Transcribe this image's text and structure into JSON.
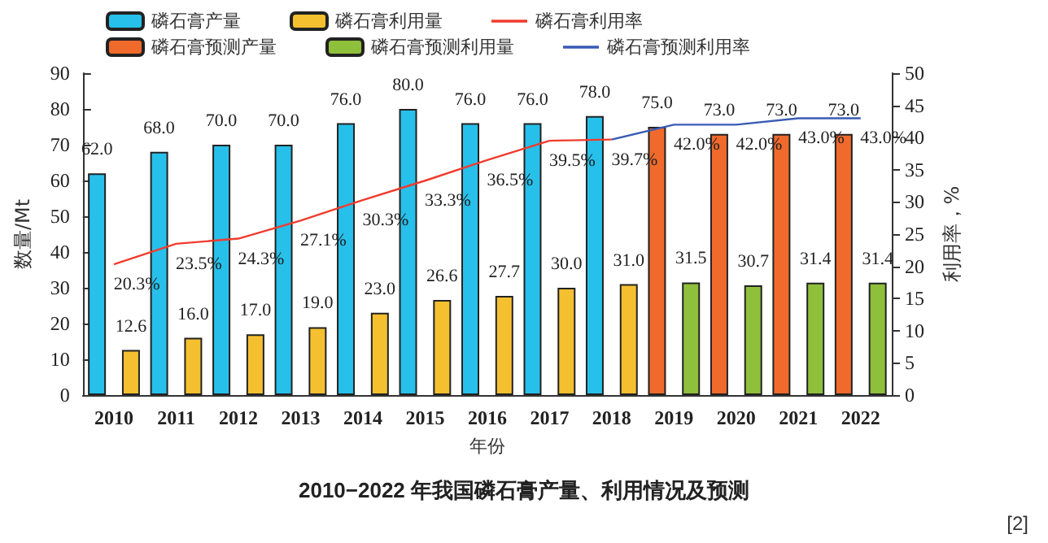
{
  "chart_data": {
    "type": "bar",
    "title": "2010−2022 年我国磷石膏产量、利用情况及预测",
    "xlabel": "年份",
    "ylabel": "数量/Mt",
    "y2label": "利用率，%",
    "annotations": [
      "[2]"
    ],
    "categories": [
      "2010",
      "2011",
      "2012",
      "2013",
      "2014",
      "2015",
      "2016",
      "2017",
      "2018",
      "2019",
      "2020",
      "2021",
      "2022"
    ],
    "ylim": [
      0,
      90
    ],
    "yticks": [
      0,
      10,
      20,
      30,
      40,
      50,
      60,
      70,
      80,
      90
    ],
    "y2lim": [
      0,
      50
    ],
    "y2ticks": [
      0,
      5,
      10,
      15,
      20,
      25,
      30,
      35,
      40,
      45,
      50
    ],
    "grid": false,
    "legend": "top",
    "marker": "none",
    "line_style": "solid",
    "series": [
      {
        "name": "磷石膏产量",
        "color": "#27c0ea",
        "values": [
          62.0,
          68.0,
          70.0,
          70.0,
          76.0,
          80.0,
          76.0,
          76.0,
          78.0,
          null,
          null,
          null,
          null
        ],
        "value_labels": [
          "62.0",
          "68.0",
          "70.0",
          "70.0",
          "76.0",
          "80.0",
          "76.0",
          "76.0",
          "78.0",
          null,
          null,
          null,
          null
        ]
      },
      {
        "name": "磷石膏利用量",
        "color": "#f5c030",
        "values": [
          12.6,
          16.0,
          17.0,
          19.0,
          23.0,
          26.6,
          27.7,
          30.0,
          31.0,
          null,
          null,
          null,
          null
        ],
        "value_labels": [
          "12.6",
          "16.0",
          "17.0",
          "19.0",
          "23.0",
          "26.6",
          "27.7",
          "30.0",
          "31.0",
          null,
          null,
          null,
          null
        ]
      },
      {
        "name": "磷石膏利用率",
        "type": "line",
        "axis": "y2",
        "color": "#f03c2e",
        "values": [
          20.3,
          23.5,
          24.3,
          27.1,
          30.3,
          33.3,
          36.5,
          39.5,
          39.7,
          null,
          null,
          null,
          null
        ],
        "value_labels": [
          "20.3%",
          "23.5%",
          "24.3%",
          "27.1%",
          "30.3%",
          "33.3%",
          "36.5%",
          "39.5%",
          "39.7%",
          null,
          null,
          null,
          null
        ]
      },
      {
        "name": "磷石膏预测产量",
        "color": "#f06a2c",
        "values": [
          null,
          null,
          null,
          null,
          null,
          null,
          null,
          null,
          null,
          75.0,
          73.0,
          73.0,
          73.0
        ],
        "value_labels": [
          null,
          null,
          null,
          null,
          null,
          null,
          null,
          null,
          null,
          "75.0",
          "73.0",
          "73.0",
          "73.0"
        ]
      },
      {
        "name": "磷石膏预测利用量",
        "color": "#8fc03c",
        "values": [
          null,
          null,
          null,
          null,
          null,
          null,
          null,
          null,
          null,
          31.5,
          30.7,
          31.4,
          31.4
        ],
        "value_labels": [
          null,
          null,
          null,
          null,
          null,
          null,
          null,
          null,
          null,
          "31.5",
          "30.7",
          "31.4",
          "31.4"
        ]
      },
      {
        "name": "磷石膏预测利用率",
        "type": "line",
        "axis": "y2",
        "color": "#3a5bb5",
        "values": [
          null,
          null,
          null,
          null,
          null,
          null,
          null,
          null,
          39.7,
          42.0,
          42.0,
          43.0,
          43.0
        ],
        "value_labels": [
          null,
          null,
          null,
          null,
          null,
          null,
          null,
          null,
          null,
          "42.0%",
          "42.0%",
          "43.0%",
          "43.0%"
        ]
      }
    ]
  }
}
